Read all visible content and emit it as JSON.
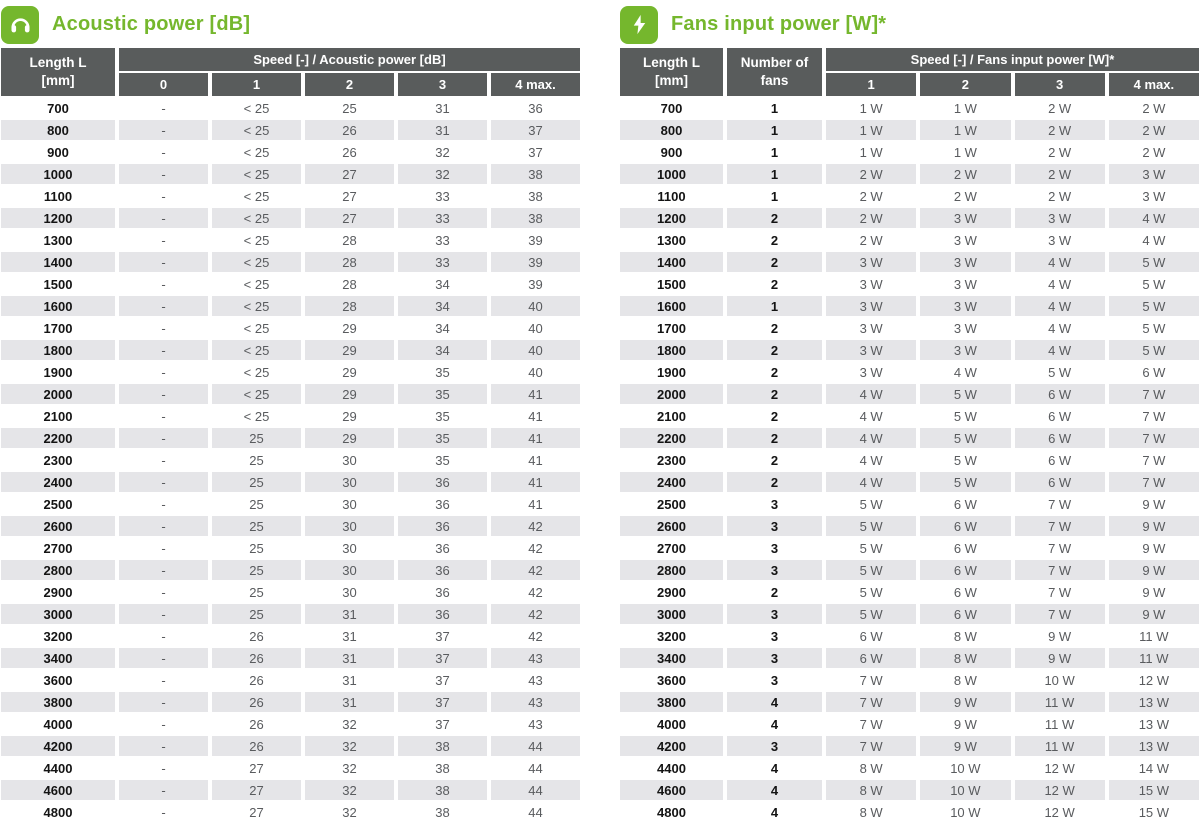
{
  "colors": {
    "accent_green": "#75b72d",
    "header_bg": "#595c5c",
    "row_alt_bg": "#e5e5e8",
    "value_text": "#595b5e",
    "length_text": "#141414"
  },
  "acoustic_table": {
    "title": "Acoustic power [dB]",
    "icon": "headphones-icon",
    "length_header": "Length L\n[mm]",
    "group_header": "Speed [-] / Acoustic power [dB]",
    "speed_headers": [
      "0",
      "1",
      "2",
      "3",
      "4 max."
    ],
    "rows": [
      [
        "700",
        "-",
        "< 25",
        "25",
        "31",
        "36"
      ],
      [
        "800",
        "-",
        "< 25",
        "26",
        "31",
        "37"
      ],
      [
        "900",
        "-",
        "< 25",
        "26",
        "32",
        "37"
      ],
      [
        "1000",
        "-",
        "< 25",
        "27",
        "32",
        "38"
      ],
      [
        "1100",
        "-",
        "< 25",
        "27",
        "33",
        "38"
      ],
      [
        "1200",
        "-",
        "< 25",
        "27",
        "33",
        "38"
      ],
      [
        "1300",
        "-",
        "< 25",
        "28",
        "33",
        "39"
      ],
      [
        "1400",
        "-",
        "< 25",
        "28",
        "33",
        "39"
      ],
      [
        "1500",
        "-",
        "< 25",
        "28",
        "34",
        "39"
      ],
      [
        "1600",
        "-",
        "< 25",
        "28",
        "34",
        "40"
      ],
      [
        "1700",
        "-",
        "< 25",
        "29",
        "34",
        "40"
      ],
      [
        "1800",
        "-",
        "< 25",
        "29",
        "34",
        "40"
      ],
      [
        "1900",
        "-",
        "< 25",
        "29",
        "35",
        "40"
      ],
      [
        "2000",
        "-",
        "< 25",
        "29",
        "35",
        "41"
      ],
      [
        "2100",
        "-",
        "< 25",
        "29",
        "35",
        "41"
      ],
      [
        "2200",
        "-",
        "25",
        "29",
        "35",
        "41"
      ],
      [
        "2300",
        "-",
        "25",
        "30",
        "35",
        "41"
      ],
      [
        "2400",
        "-",
        "25",
        "30",
        "36",
        "41"
      ],
      [
        "2500",
        "-",
        "25",
        "30",
        "36",
        "41"
      ],
      [
        "2600",
        "-",
        "25",
        "30",
        "36",
        "42"
      ],
      [
        "2700",
        "-",
        "25",
        "30",
        "36",
        "42"
      ],
      [
        "2800",
        "-",
        "25",
        "30",
        "36",
        "42"
      ],
      [
        "2900",
        "-",
        "25",
        "30",
        "36",
        "42"
      ],
      [
        "3000",
        "-",
        "25",
        "31",
        "36",
        "42"
      ],
      [
        "3200",
        "-",
        "26",
        "31",
        "37",
        "42"
      ],
      [
        "3400",
        "-",
        "26",
        "31",
        "37",
        "43"
      ],
      [
        "3600",
        "-",
        "26",
        "31",
        "37",
        "43"
      ],
      [
        "3800",
        "-",
        "26",
        "31",
        "37",
        "43"
      ],
      [
        "4000",
        "-",
        "26",
        "32",
        "37",
        "43"
      ],
      [
        "4200",
        "-",
        "26",
        "32",
        "38",
        "44"
      ],
      [
        "4400",
        "-",
        "27",
        "32",
        "38",
        "44"
      ],
      [
        "4600",
        "-",
        "27",
        "32",
        "38",
        "44"
      ],
      [
        "4800",
        "-",
        "27",
        "32",
        "38",
        "44"
      ]
    ]
  },
  "fans_table": {
    "title": "Fans input power [W]*",
    "icon": "lightning-icon",
    "length_header": "Length L\n[mm]",
    "fans_header": "Number of\nfans",
    "group_header": "Speed [-] / Fans input power [W]*",
    "speed_headers": [
      "1",
      "2",
      "3",
      "4 max."
    ],
    "rows": [
      [
        "700",
        "1",
        "1 W",
        "1 W",
        "2 W",
        "2 W"
      ],
      [
        "800",
        "1",
        "1 W",
        "1 W",
        "2 W",
        "2 W"
      ],
      [
        "900",
        "1",
        "1 W",
        "1 W",
        "2 W",
        "2 W"
      ],
      [
        "1000",
        "1",
        "2 W",
        "2 W",
        "2 W",
        "3 W"
      ],
      [
        "1100",
        "1",
        "2 W",
        "2 W",
        "2 W",
        "3 W"
      ],
      [
        "1200",
        "2",
        "2 W",
        "3 W",
        "3 W",
        "4 W"
      ],
      [
        "1300",
        "2",
        "2 W",
        "3 W",
        "3 W",
        "4 W"
      ],
      [
        "1400",
        "2",
        "3 W",
        "3 W",
        "4 W",
        "5 W"
      ],
      [
        "1500",
        "2",
        "3 W",
        "3 W",
        "4 W",
        "5 W"
      ],
      [
        "1600",
        "1",
        "3 W",
        "3 W",
        "4 W",
        "5 W"
      ],
      [
        "1700",
        "2",
        "3 W",
        "3 W",
        "4 W",
        "5 W"
      ],
      [
        "1800",
        "2",
        "3 W",
        "3 W",
        "4 W",
        "5 W"
      ],
      [
        "1900",
        "2",
        "3 W",
        "4 W",
        "5 W",
        "6 W"
      ],
      [
        "2000",
        "2",
        "4 W",
        "5 W",
        "6 W",
        "7 W"
      ],
      [
        "2100",
        "2",
        "4 W",
        "5 W",
        "6 W",
        "7 W"
      ],
      [
        "2200",
        "2",
        "4 W",
        "5 W",
        "6 W",
        "7 W"
      ],
      [
        "2300",
        "2",
        "4 W",
        "5 W",
        "6 W",
        "7 W"
      ],
      [
        "2400",
        "2",
        "4 W",
        "5 W",
        "6 W",
        "7 W"
      ],
      [
        "2500",
        "3",
        "5 W",
        "6 W",
        "7 W",
        "9 W"
      ],
      [
        "2600",
        "3",
        "5 W",
        "6 W",
        "7 W",
        "9 W"
      ],
      [
        "2700",
        "3",
        "5 W",
        "6 W",
        "7 W",
        "9 W"
      ],
      [
        "2800",
        "3",
        "5 W",
        "6 W",
        "7 W",
        "9 W"
      ],
      [
        "2900",
        "2",
        "5 W",
        "6 W",
        "7 W",
        "9 W"
      ],
      [
        "3000",
        "3",
        "5 W",
        "6 W",
        "7 W",
        "9 W"
      ],
      [
        "3200",
        "3",
        "6 W",
        "8 W",
        "9 W",
        "11 W"
      ],
      [
        "3400",
        "3",
        "6 W",
        "8 W",
        "9 W",
        "11 W"
      ],
      [
        "3600",
        "3",
        "7 W",
        "8 W",
        "10 W",
        "12 W"
      ],
      [
        "3800",
        "4",
        "7 W",
        "9 W",
        "11 W",
        "13 W"
      ],
      [
        "4000",
        "4",
        "7 W",
        "9 W",
        "11 W",
        "13 W"
      ],
      [
        "4200",
        "3",
        "7 W",
        "9 W",
        "11 W",
        "13 W"
      ],
      [
        "4400",
        "4",
        "8 W",
        "10 W",
        "12 W",
        "14 W"
      ],
      [
        "4600",
        "4",
        "8 W",
        "10 W",
        "12 W",
        "15 W"
      ],
      [
        "4800",
        "4",
        "8 W",
        "10 W",
        "12 W",
        "15 W"
      ]
    ]
  }
}
